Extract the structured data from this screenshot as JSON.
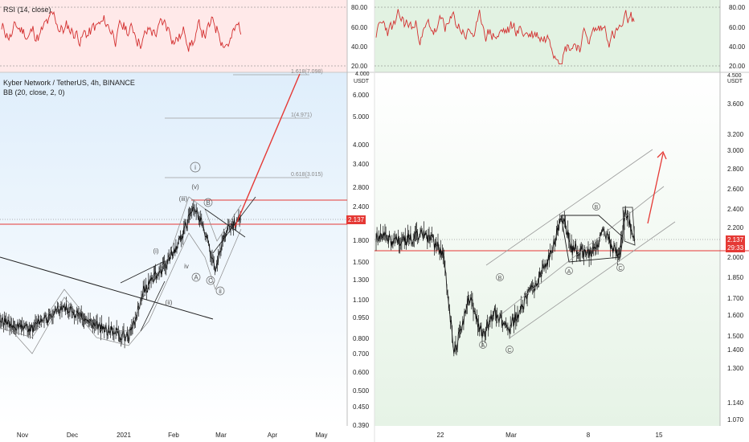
{
  "colors": {
    "rsi_line": "#d32f2f",
    "candle": "#111111",
    "level_red": "#e53935",
    "fib_gray": "#9e9e9e",
    "left_bg": "#dfeefb",
    "right_bg": "#e6f3e6",
    "rsi_bg_left": "#ffe9e9",
    "rsi_bg_right": "#e2f2e2"
  },
  "left": {
    "rsi_label": "RSI (14, close)",
    "symbol_label": "Kyber Network / TetherUS, 4h, BINANCE",
    "bb_label": "BB (20, close, 2, 0)",
    "price_unit": "USDT",
    "current_price": "2.137",
    "rsi_ticks": [
      "80.00",
      "60.00",
      "40.00",
      "20.00"
    ],
    "price_ticks": [
      "6.000",
      "5.000",
      "4.000",
      "3.400",
      "2.800",
      "2.400",
      "1.800",
      "1.500",
      "1.300",
      "1.100",
      "0.950",
      "0.800",
      "0.700",
      "0.600",
      "0.500",
      "0.450",
      "0.390"
    ],
    "top_tick": "4.000",
    "x_ticks": [
      "Nov",
      "Dec",
      "2021",
      "Feb",
      "Mar",
      "Apr",
      "May"
    ],
    "fib_labels": [
      "1.618(7.098)",
      "1(4.971)",
      "0.618(3.015)"
    ],
    "wave_labels": [
      "i",
      "(v)",
      "(iii)",
      "B",
      "(i)",
      "iv",
      "A",
      "C",
      "ii",
      "(ii)"
    ]
  },
  "right": {
    "price_unit": "USDT",
    "current_price": "2.137",
    "countdown": "29:33",
    "rsi_ticks": [
      "80.00",
      "60.00",
      "40.00",
      "20.00"
    ],
    "price_ticks": [
      "3.600",
      "3.200",
      "3.000",
      "2.800",
      "2.600",
      "2.400",
      "2.200",
      "2.000",
      "1.850",
      "1.700",
      "1.600",
      "1.500",
      "1.400",
      "1.300",
      "1.140",
      "1.070"
    ],
    "top_tick": "4.500",
    "x_ticks": [
      "22",
      "Mar",
      "8",
      "15"
    ],
    "wave_labels": [
      "A",
      "B",
      "C",
      "A",
      "B",
      "C"
    ]
  },
  "chart_data": [
    {
      "type": "line",
      "title": "Kyber Network / TetherUS, 4h, BINANCE",
      "ylabel": "USDT",
      "y_scale": "log",
      "ylim": [
        0.39,
        6.8
      ],
      "x_ticks": [
        "Nov",
        "Dec",
        "2021",
        "Feb",
        "Mar",
        "Apr",
        "May"
      ],
      "current_price": 2.137,
      "levels": [
        2.5,
        2.07
      ],
      "fib_levels": [
        {
          "label": "1.618(7.098)",
          "value": 7.098
        },
        {
          "label": "1(4.971)",
          "value": 4.971
        },
        {
          "label": "0.618(3.015)",
          "value": 3.015
        }
      ],
      "series": [
        {
          "name": "Kyber Network / TetherUS",
          "x": [
            "Nov",
            "Dec",
            "2021",
            "Feb",
            "Mar"
          ],
          "values": [
            0.95,
            0.9,
            0.74,
            1.45,
            2.137
          ]
        }
      ]
    },
    {
      "type": "line",
      "title": "RSI (14, close)",
      "ylim": [
        20,
        80
      ],
      "series": [
        {
          "name": "RSI (14, close)",
          "values": [
            55,
            62,
            48,
            66,
            51,
            70,
            45,
            58,
            63,
            52,
            67,
            59
          ]
        }
      ]
    },
    {
      "type": "line",
      "ylabel": "USDT",
      "y_scale": "log",
      "ylim": [
        1.05,
        4.5
      ],
      "x_ticks": [
        "22",
        "Mar",
        "8",
        "15"
      ],
      "current_price": 2.137,
      "levels": [
        2.05
      ],
      "series": [
        {
          "name": "Kyber Network / TetherUS",
          "x": [
            "22",
            "Mar",
            "8",
            "15"
          ],
          "values": [
            1.6,
            1.45,
            2.1,
            2.137
          ]
        }
      ]
    }
  ]
}
